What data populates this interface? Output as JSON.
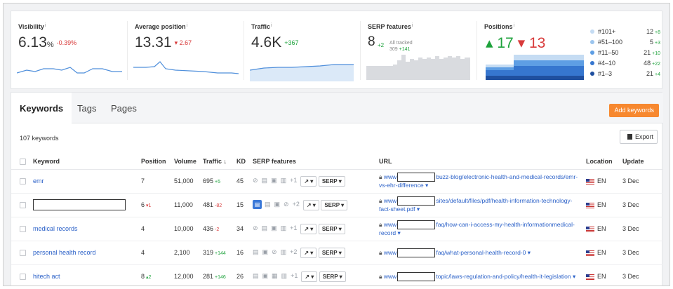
{
  "metrics": {
    "visibility": {
      "label": "Visibility",
      "value": "6.13",
      "unit": "%",
      "delta": "-0.39%"
    },
    "avg_position": {
      "label": "Average position",
      "value": "13.31",
      "delta": "▾ 2.67"
    },
    "traffic": {
      "label": "Traffic",
      "value": "4.6K",
      "delta": "+367"
    },
    "serp_features": {
      "label": "SERP features",
      "value": "8",
      "delta": "+2",
      "all_tracked_label": "All tracked",
      "all_tracked_value": "309",
      "all_tracked_delta": "+141"
    },
    "positions": {
      "label": "Positions",
      "up": "▴ 17",
      "down": "▾ 13"
    },
    "info_glyph": "i"
  },
  "position_legend": [
    {
      "name": "#101+",
      "count": "12",
      "delta": "+8",
      "color": "#c5dcf3"
    },
    {
      "name": "#51–100",
      "count": "5",
      "delta": "+3",
      "color": "#9cc5ee"
    },
    {
      "name": "#11–50",
      "count": "21",
      "delta": "+10",
      "color": "#5e9ee4"
    },
    {
      "name": "#4–10",
      "count": "48",
      "delta": "+22",
      "color": "#3676cf"
    },
    {
      "name": "#1–3",
      "count": "21",
      "delta": "+4",
      "color": "#1f4f9f"
    }
  ],
  "tabs": [
    {
      "label": "Keywords",
      "active": true
    },
    {
      "label": "Tags",
      "active": false
    },
    {
      "label": "Pages",
      "active": false
    }
  ],
  "add_keywords_label": "Add keywords",
  "keyword_count": "107 keywords",
  "export_label": "Export",
  "table": {
    "headers": {
      "keyword": "Keyword",
      "position": "Position",
      "volume": "Volume",
      "traffic": "Traffic ↓",
      "kd": "KD",
      "serp": "SERP features",
      "url": "URL",
      "location": "Location",
      "update": "Update"
    },
    "serp_button": "SERP ▾",
    "trend_button": "↗ ▾",
    "rows": [
      {
        "keyword": "emr",
        "masked": false,
        "position": "7",
        "pos_delta": "",
        "volume": "51,000",
        "traffic": "695",
        "traffic_delta": "+5",
        "kd": "45",
        "extra": "+1",
        "url_prefix": "www",
        "url_rest": "buzz-blog/electronic-health-and-medical-records/emr-vs-ehr-difference ▾",
        "location": "EN",
        "update": "3 Dec"
      },
      {
        "keyword": "",
        "masked": true,
        "position": "6",
        "pos_delta": "▾1",
        "volume": "11,000",
        "traffic": "481",
        "traffic_delta": "-82",
        "kd": "15",
        "extra": "+2",
        "url_prefix": "www",
        "url_rest": "sites/default/files/pdf/health-information-technology-fact-sheet.pdf ▾",
        "location": "EN",
        "update": "3 Dec"
      },
      {
        "keyword": "medical records",
        "masked": false,
        "position": "4",
        "pos_delta": "",
        "volume": "10,000",
        "traffic": "436",
        "traffic_delta": "-2",
        "kd": "34",
        "extra": "+1",
        "url_prefix": "www",
        "url_rest": "faq/how-can-i-access-my-health-informationmedical-record ▾",
        "location": "EN",
        "update": "3 Dec"
      },
      {
        "keyword": "personal health record",
        "masked": false,
        "position": "4",
        "pos_delta": "",
        "volume": "2,100",
        "traffic": "319",
        "traffic_delta": "+144",
        "kd": "16",
        "extra": "+2",
        "url_prefix": "www",
        "url_rest": "faq/what-personal-health-record-0 ▾",
        "location": "EN",
        "update": "3 Dec"
      },
      {
        "keyword": "hitech act",
        "masked": false,
        "position": "8",
        "pos_delta": "▴2",
        "volume": "12,000",
        "traffic": "281",
        "traffic_delta": "+146",
        "kd": "26",
        "extra": "+1",
        "url_prefix": "www",
        "url_rest": "topic/laws-regulation-and-policy/health-it-legislation ▾",
        "location": "EN",
        "update": "3 Dec"
      }
    ]
  },
  "colors": {
    "accent_orange": "#f7882f",
    "link_blue": "#2b61c8",
    "positive": "#1ea23c",
    "negative": "#d83a3a",
    "chart_blue": "#5e9ee4"
  }
}
